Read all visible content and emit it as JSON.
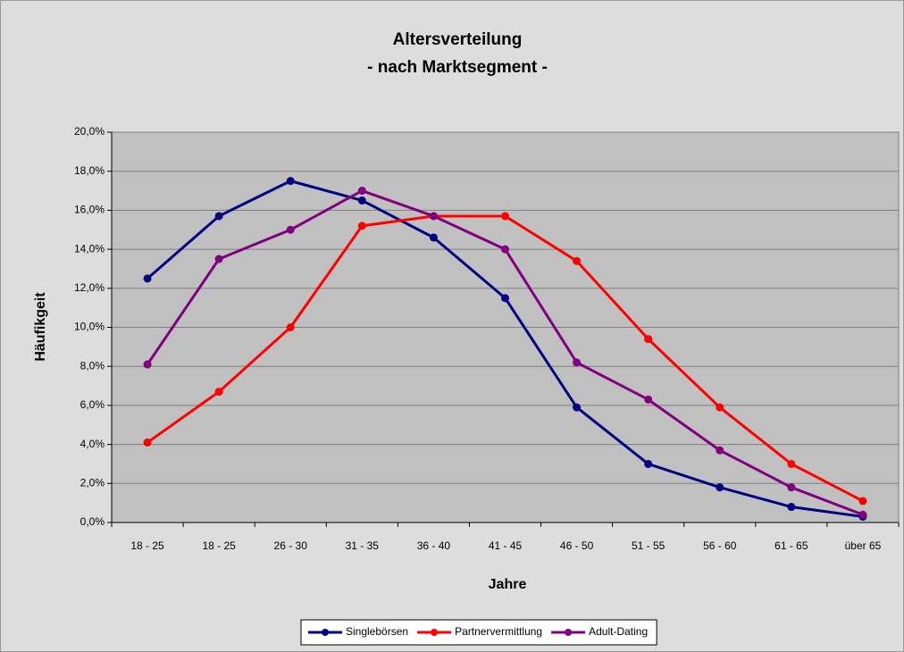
{
  "chart_data": {
    "type": "line",
    "title": "Altersverteilung",
    "subtitle": "- nach Marktsegment -",
    "x_label": "Jahre",
    "y_label": "Häufikgeit",
    "categories": [
      "18 - 25",
      "18 - 25",
      "26 - 30",
      "31 - 35",
      "36 - 40",
      "41 - 45",
      "46 - 50",
      "51 - 55",
      "56 - 60",
      "61 - 65",
      "über 65"
    ],
    "series": [
      {
        "name": "Singlebörsen",
        "color": "#000080",
        "values": [
          12.5,
          15.7,
          17.5,
          16.5,
          14.6,
          11.5,
          5.9,
          3.0,
          1.8,
          0.8,
          0.3
        ]
      },
      {
        "name": "Partnervermittlung",
        "color": "#ff0000",
        "values": [
          4.1,
          6.7,
          10.0,
          15.2,
          15.7,
          15.7,
          13.4,
          9.4,
          5.9,
          3.0,
          1.1
        ]
      },
      {
        "name": "Adult-Dating",
        "color": "#800080",
        "values": [
          8.1,
          13.5,
          15.0,
          17.0,
          15.7,
          14.0,
          8.2,
          6.3,
          3.7,
          1.8,
          0.4
        ]
      }
    ],
    "ylim": [
      0,
      20
    ],
    "yticks": [
      {
        "value": 0,
        "label": "0,0%"
      },
      {
        "value": 2,
        "label": "2,0%"
      },
      {
        "value": 4,
        "label": "4,0%"
      },
      {
        "value": 6,
        "label": "6,0%"
      },
      {
        "value": 8,
        "label": "8,0%"
      },
      {
        "value": 10,
        "label": "10,0%"
      },
      {
        "value": 12,
        "label": "12,0%"
      },
      {
        "value": 14,
        "label": "14,0%"
      },
      {
        "value": 16,
        "label": "16,0%"
      },
      {
        "value": 18,
        "label": "18,0%"
      },
      {
        "value": 20,
        "label": "20,0%"
      }
    ],
    "grid": true,
    "legend": "bottom"
  }
}
